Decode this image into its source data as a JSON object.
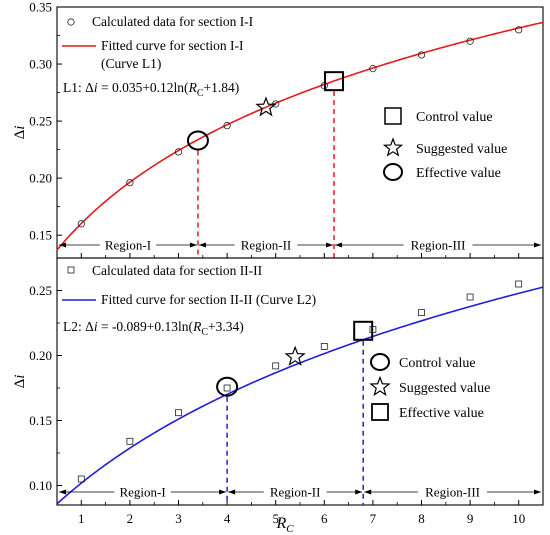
{
  "chart_data": [
    {
      "type": "scatter",
      "ylabel": "Δi",
      "ylim": [
        0.13,
        0.35
      ],
      "yticks": [
        "0.15",
        "0.20",
        "0.25",
        "0.30",
        "0.35"
      ],
      "ytick_values": [
        0.15,
        0.2,
        0.25,
        0.3,
        0.35
      ],
      "xlim": [
        0.5,
        10.5
      ],
      "x_tick_values": [
        1,
        2,
        3,
        4,
        5,
        6,
        7,
        8,
        9,
        10
      ],
      "x_ticks_labeled": false,
      "legend": {
        "points_label": "Calculated data for section I-I",
        "curve_label_line1": "Fitted curve for section I-I",
        "curve_label_line2": "(Curve L1)"
      },
      "equation": {
        "prefix": "L1: Δ",
        "var": "i",
        "mid": " = 0.035+0.12ln(",
        "rc_main": "R",
        "rc_sub": "C",
        "tail": "+1.84)"
      },
      "fit": {
        "a": 0.035,
        "b": 0.12,
        "c": 1.84,
        "color": "#e41a1c"
      },
      "series": [
        {
          "kind": "points",
          "marker": "circle",
          "x": [
            1,
            2,
            3,
            4,
            5,
            6,
            7,
            8,
            9,
            10
          ],
          "y": [
            0.16,
            0.196,
            0.223,
            0.246,
            0.265,
            0.281,
            0.296,
            0.308,
            0.32,
            0.33
          ]
        }
      ],
      "markers": {
        "control": {
          "x": 6.2,
          "y": 0.285,
          "shape": "square"
        },
        "suggested": {
          "x": 4.8,
          "y": 0.262,
          "shape": "star"
        },
        "effective": {
          "x": 3.4,
          "y": 0.233,
          "shape": "circle"
        }
      },
      "marker_legend": {
        "control": "Control value",
        "suggested": "Suggested value",
        "effective": "Effective value"
      },
      "regions": {
        "boundaries": [
          3.4,
          6.2
        ],
        "labels": [
          "Region-I",
          "Region-II",
          "Region-III"
        ]
      }
    },
    {
      "type": "scatter",
      "ylabel": "Δi",
      "xlabel_main": "R",
      "xlabel_sub": "C",
      "ylim": [
        0.085,
        0.275
      ],
      "yticks": [
        "0.10",
        "0.15",
        "0.20",
        "0.25"
      ],
      "ytick_values": [
        0.1,
        0.15,
        0.2,
        0.25
      ],
      "xlim": [
        0.5,
        10.5
      ],
      "xticks": [
        "1",
        "2",
        "3",
        "4",
        "5",
        "6",
        "7",
        "8",
        "9",
        "10"
      ],
      "x_tick_values": [
        1,
        2,
        3,
        4,
        5,
        6,
        7,
        8,
        9,
        10
      ],
      "legend": {
        "points_label": "Calculated data for section II-II",
        "curve_label": "Fitted curve for section II-II (Curve L2)"
      },
      "equation": {
        "prefix": "L2: Δ",
        "var": "i",
        "mid": " = -0.089+0.13ln(",
        "rc_main": "R",
        "rc_sub": "C",
        "tail": "+3.34)"
      },
      "fit": {
        "a": -0.089,
        "b": 0.13,
        "c": 3.34,
        "color": "#1f1fd6"
      },
      "series": [
        {
          "kind": "points",
          "marker": "square",
          "x": [
            1,
            2,
            3,
            4,
            5,
            6,
            7,
            8,
            9,
            10
          ],
          "y": [
            0.105,
            0.134,
            0.156,
            0.175,
            0.192,
            0.207,
            0.22,
            0.233,
            0.245,
            0.255
          ]
        }
      ],
      "markers": {
        "control": {
          "x": 4.0,
          "y": 0.176,
          "shape": "circle"
        },
        "suggested": {
          "x": 5.4,
          "y": 0.199,
          "shape": "star"
        },
        "effective": {
          "x": 6.8,
          "y": 0.219,
          "shape": "square"
        }
      },
      "marker_legend": {
        "control": "Control value",
        "suggested": "Suggested value",
        "effective": "Effective value"
      },
      "regions": {
        "boundaries": [
          4.0,
          6.8
        ],
        "labels": [
          "Region-I",
          "Region-II",
          "Region-III"
        ]
      }
    }
  ]
}
